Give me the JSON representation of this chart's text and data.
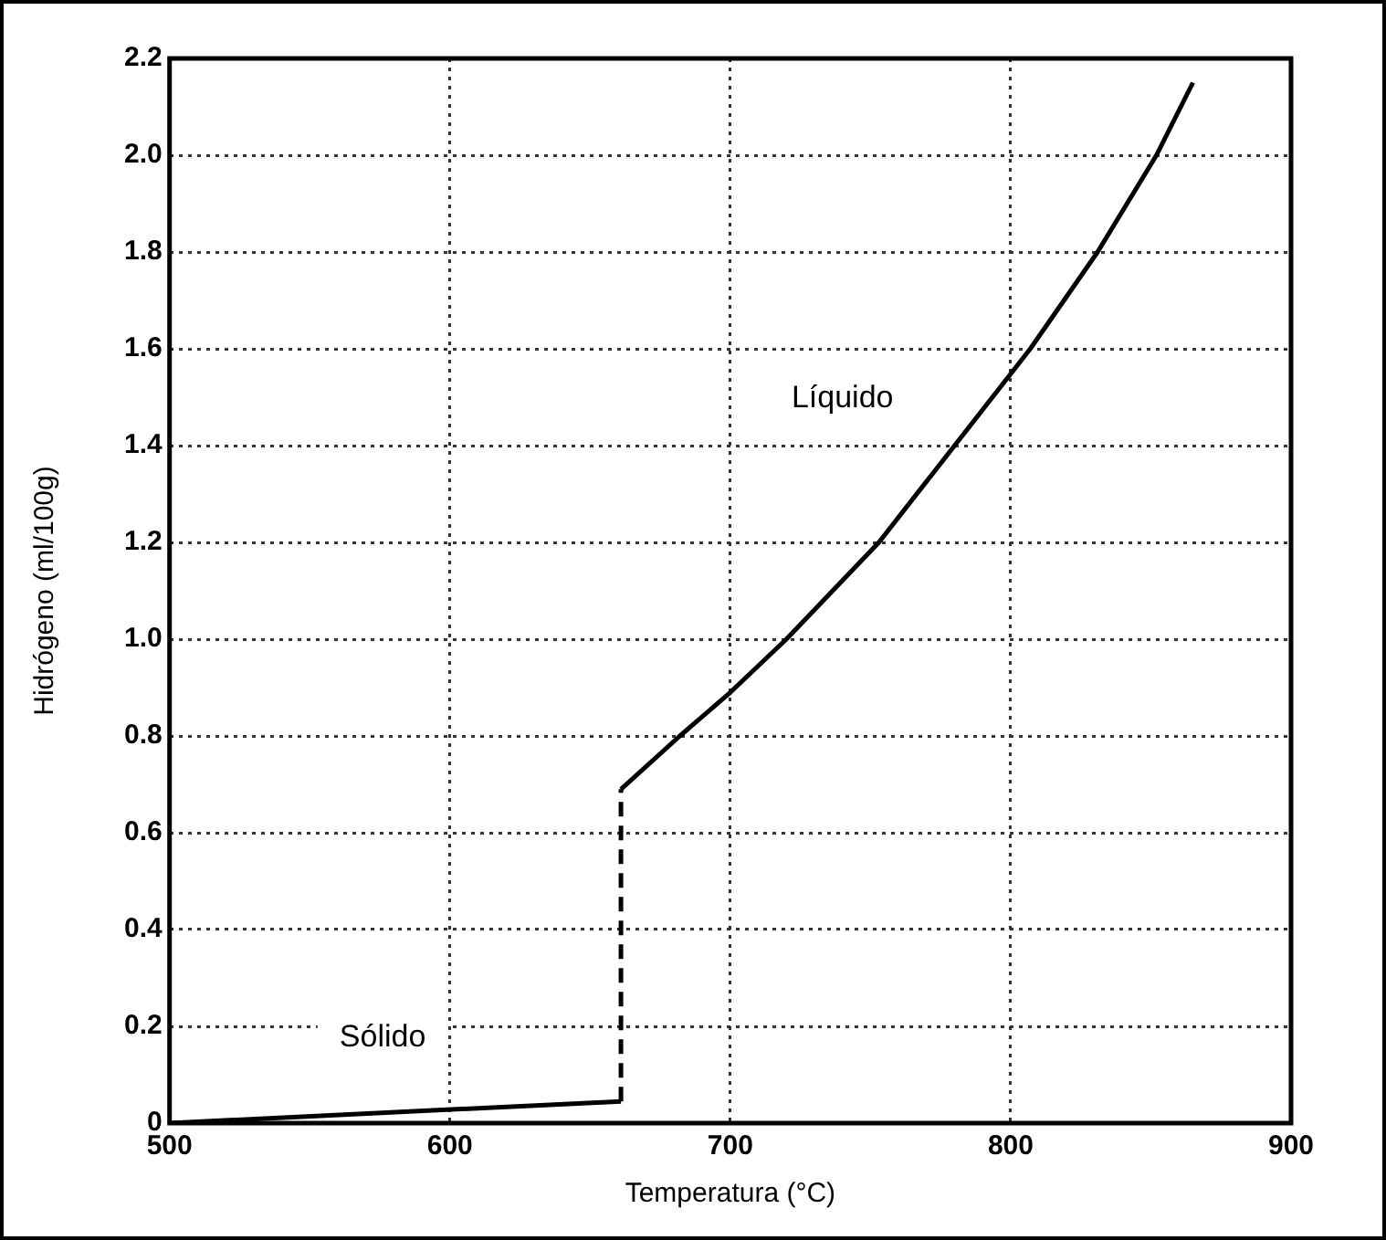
{
  "chart_data": {
    "type": "line",
    "xlabel": "Temperatura (°C)",
    "ylabel": "Hidrógeno (ml/100g)",
    "xlim": [
      500,
      900
    ],
    "xticks": [
      500,
      600,
      700,
      800,
      900
    ],
    "ylim": [
      0,
      2.2
    ],
    "yticks": [
      0,
      0.2,
      0.4,
      0.6,
      {
        "value": 0.8,
        "label": "0.8"
      },
      {
        "value": 1,
        "label": "1.0"
      },
      1.2,
      1.4,
      1.6,
      1.8,
      {
        "value": 2,
        "label": "2.0"
      },
      2.2
    ],
    "grid": true,
    "legend": false,
    "marker": "none",
    "annotations": [
      "Líquido",
      "Sólido"
    ],
    "series": [
      {
        "color": "#000000",
        "line_style": "solid",
        "x": [
          500,
          661
        ],
        "values": [
          0,
          0.045
        ]
      },
      {
        "color": "#000000",
        "line_style": "dashed",
        "x": [
          661,
          661
        ],
        "values": [
          0.045,
          0.69
        ]
      },
      {
        "color": "#000000",
        "line_style": "solid",
        "x": [
          661,
          682,
          700,
          720,
          753,
          780,
          807,
          831,
          852,
          865
        ],
        "values": [
          0.69,
          0.8,
          0.89,
          1,
          1.2,
          1.4,
          1.6,
          1.8,
          2,
          2.15
        ]
      }
    ]
  }
}
